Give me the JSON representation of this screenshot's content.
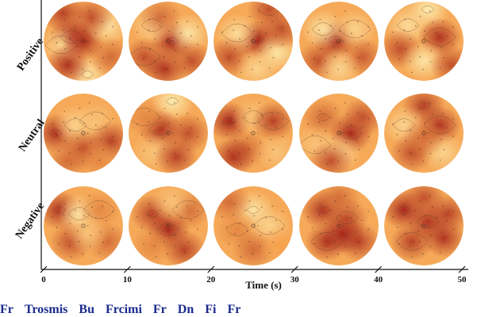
{
  "chart_data": {
    "type": "heatmap",
    "description_kind": "grid of topographic scalp maps",
    "rows": [
      "Positive",
      "Neutral",
      "Negative"
    ],
    "columns": 5,
    "xlabel": "Time (s)",
    "x_ticks": [
      "0",
      "10",
      "20",
      "30",
      "40",
      "50"
    ],
    "xlim": [
      0,
      50
    ],
    "colormap": {
      "low": "#fdf3b8",
      "mid": "#f5a24e",
      "high": "#9e1a16"
    },
    "maps": [
      [
        {
          "spots": [
            [
              0.55,
              0.92,
              0.1
            ],
            [
              0.35,
              0.45,
              0.95
            ],
            [
              0.22,
              0.55,
              0.2
            ],
            [
              0.25,
              0.15,
              0.85
            ],
            [
              0.5,
              0.5,
              0.9
            ],
            [
              0.8,
              0.3,
              0.1
            ],
            [
              0.85,
              0.7,
              0.7
            ],
            [
              0.3,
              0.8,
              0.9
            ],
            [
              0.6,
              0.2,
              0.8
            ]
          ]
        },
        {
          "spots": [
            [
              0.55,
              0.5,
              0.95
            ],
            [
              0.3,
              0.3,
              0.2
            ],
            [
              0.2,
              0.7,
              0.8
            ],
            [
              0.75,
              0.4,
              0.1
            ],
            [
              0.8,
              0.75,
              0.8
            ],
            [
              0.4,
              0.2,
              0.7
            ],
            [
              0.45,
              0.85,
              0.9
            ]
          ]
        },
        {
          "spots": [
            [
              0.55,
              0.48,
              0.95
            ],
            [
              0.7,
              0.1,
              0.8
            ],
            [
              0.3,
              0.4,
              0.15
            ],
            [
              0.8,
              0.65,
              0.1
            ],
            [
              0.2,
              0.7,
              0.8
            ],
            [
              0.55,
              0.85,
              0.2
            ],
            [
              0.85,
              0.35,
              0.8
            ]
          ]
        },
        {
          "spots": [
            [
              0.45,
              0.48,
              0.95
            ],
            [
              0.3,
              0.35,
              0.1
            ],
            [
              0.7,
              0.35,
              0.2
            ],
            [
              0.25,
              0.75,
              0.8
            ],
            [
              0.8,
              0.7,
              0.75
            ],
            [
              0.5,
              0.85,
              0.2
            ]
          ]
        },
        {
          "spots": [
            [
              0.55,
              0.1,
              0.05
            ],
            [
              0.3,
              0.3,
              0.15
            ],
            [
              0.7,
              0.45,
              0.9
            ],
            [
              0.2,
              0.6,
              0.8
            ],
            [
              0.5,
              0.75,
              0.1
            ],
            [
              0.85,
              0.8,
              0.8
            ]
          ]
        }
      ],
      [
        {
          "spots": [
            [
              0.15,
              0.5,
              0.9
            ],
            [
              0.4,
              0.4,
              0.2
            ],
            [
              0.65,
              0.35,
              0.3
            ],
            [
              0.5,
              0.7,
              0.8
            ],
            [
              0.85,
              0.6,
              0.85
            ],
            [
              0.3,
              0.85,
              0.7
            ],
            [
              0.7,
              0.85,
              0.6
            ]
          ]
        },
        {
          "spots": [
            [
              0.55,
              0.1,
              0.05
            ],
            [
              0.4,
              0.45,
              0.9
            ],
            [
              0.2,
              0.3,
              0.6
            ],
            [
              0.75,
              0.5,
              0.8
            ],
            [
              0.3,
              0.75,
              0.3
            ],
            [
              0.6,
              0.8,
              0.85
            ]
          ]
        },
        {
          "spots": [
            [
              0.2,
              0.35,
              0.95
            ],
            [
              0.5,
              0.3,
              0.3
            ],
            [
              0.75,
              0.35,
              0.85
            ],
            [
              0.4,
              0.7,
              0.7
            ],
            [
              0.8,
              0.75,
              0.3
            ],
            [
              0.25,
              0.8,
              0.9
            ]
          ]
        },
        {
          "spots": [
            [
              0.3,
              0.3,
              0.7
            ],
            [
              0.65,
              0.5,
              0.95
            ],
            [
              0.2,
              0.65,
              0.3
            ],
            [
              0.5,
              0.75,
              0.2
            ],
            [
              0.8,
              0.3,
              0.8
            ],
            [
              0.4,
              0.85,
              0.8
            ]
          ]
        },
        {
          "spots": [
            [
              0.5,
              0.15,
              0.85
            ],
            [
              0.25,
              0.4,
              0.2
            ],
            [
              0.7,
              0.4,
              0.9
            ],
            [
              0.35,
              0.75,
              0.8
            ],
            [
              0.75,
              0.75,
              0.2
            ],
            [
              0.5,
              0.55,
              0.7
            ]
          ]
        }
      ],
      [
        {
          "spots": [
            [
              0.2,
              0.3,
              0.9
            ],
            [
              0.45,
              0.35,
              0.1
            ],
            [
              0.7,
              0.3,
              0.6
            ],
            [
              0.35,
              0.7,
              0.8
            ],
            [
              0.8,
              0.7,
              0.7
            ],
            [
              0.55,
              0.6,
              0.3
            ]
          ]
        },
        {
          "spots": [
            [
              0.3,
              0.35,
              0.85
            ],
            [
              0.5,
              0.55,
              0.95
            ],
            [
              0.75,
              0.3,
              0.7
            ],
            [
              0.3,
              0.75,
              0.6
            ],
            [
              0.7,
              0.8,
              0.85
            ],
            [
              0.55,
              0.2,
              0.3
            ]
          ]
        },
        {
          "spots": [
            [
              0.5,
              0.3,
              0.1
            ],
            [
              0.3,
              0.55,
              0.6
            ],
            [
              0.7,
              0.5,
              0.2
            ],
            [
              0.5,
              0.8,
              0.7
            ],
            [
              0.2,
              0.2,
              0.7
            ],
            [
              0.85,
              0.75,
              0.5
            ]
          ]
        },
        {
          "spots": [
            [
              0.3,
              0.3,
              0.9
            ],
            [
              0.6,
              0.4,
              0.8
            ],
            [
              0.35,
              0.7,
              0.9
            ],
            [
              0.75,
              0.7,
              0.85
            ],
            [
              0.5,
              0.15,
              0.7
            ],
            [
              0.55,
              0.6,
              0.95
            ]
          ]
        },
        {
          "spots": [
            [
              0.25,
              0.3,
              0.95
            ],
            [
              0.55,
              0.45,
              0.9
            ],
            [
              0.35,
              0.7,
              0.85
            ],
            [
              0.75,
              0.65,
              0.9
            ],
            [
              0.5,
              0.15,
              0.8
            ],
            [
              0.8,
              0.35,
              0.85
            ]
          ]
        }
      ]
    ]
  },
  "caption": {
    "words": [
      "Fr",
      "Trosmis",
      "Bu",
      "Frcimi",
      "Fr",
      "Dn",
      "Fi",
      "Fr"
    ]
  }
}
